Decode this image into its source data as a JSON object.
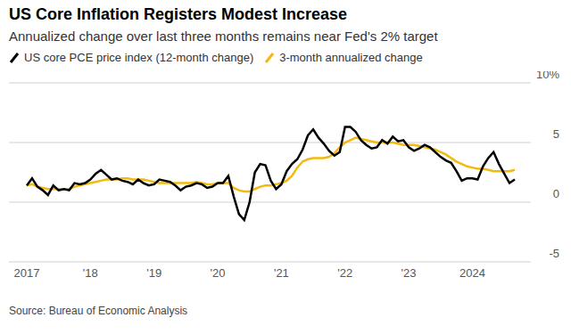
{
  "chart_data": {
    "type": "line",
    "title": "US Core Inflation Registers Modest Increase",
    "subtitle": "Annualized change over last three months remains near Fed's 2% target",
    "source": "Source: Bureau of Economic Analysis",
    "categories": [
      "2017",
      null,
      null,
      null,
      null,
      null,
      null,
      null,
      null,
      null,
      null,
      null,
      "'18",
      null,
      null,
      null,
      null,
      null,
      null,
      null,
      null,
      null,
      null,
      null,
      "'19",
      null,
      null,
      null,
      null,
      null,
      null,
      null,
      null,
      null,
      null,
      null,
      "'20",
      null,
      null,
      null,
      null,
      null,
      null,
      null,
      null,
      null,
      null,
      null,
      "'21",
      null,
      null,
      null,
      null,
      null,
      null,
      null,
      null,
      null,
      null,
      null,
      "'22",
      null,
      null,
      null,
      null,
      null,
      null,
      null,
      null,
      null,
      null,
      null,
      "'23",
      null,
      null,
      null,
      null,
      null,
      null,
      null,
      null,
      null,
      null,
      null,
      "2024",
      null,
      null,
      null,
      null,
      null,
      null,
      null,
      null
    ],
    "series": [
      {
        "name": "US core PCE price index (12-month change)",
        "color": "#000000",
        "values": [
          1.4,
          2.0,
          1.3,
          1.0,
          0.6,
          1.4,
          1.0,
          1.1,
          1.0,
          1.6,
          1.5,
          1.6,
          1.9,
          2.4,
          2.7,
          2.3,
          1.9,
          2.0,
          1.8,
          1.7,
          1.5,
          1.9,
          1.6,
          1.4,
          1.5,
          1.9,
          1.8,
          1.7,
          1.4,
          1.0,
          1.3,
          1.4,
          1.6,
          1.5,
          1.2,
          1.3,
          1.6,
          1.6,
          2.2,
          0.5,
          -1.0,
          -1.5,
          0.0,
          2.5,
          3.2,
          3.1,
          1.8,
          1.1,
          1.5,
          2.6,
          3.2,
          3.6,
          4.4,
          5.6,
          6.1,
          5.4,
          4.9,
          4.3,
          3.9,
          4.2,
          6.3,
          6.3,
          5.9,
          5.2,
          4.8,
          4.5,
          4.6,
          5.2,
          4.9,
          5.5,
          5.1,
          5.2,
          4.6,
          4.3,
          4.5,
          4.8,
          4.6,
          4.2,
          3.8,
          3.5,
          3.3,
          2.6,
          1.8,
          2.0,
          2.0,
          1.9,
          3.0,
          3.7,
          4.2,
          3.2,
          2.4,
          1.6,
          1.9
        ]
      },
      {
        "name": "3-month annualized change",
        "color": "#f4b90f",
        "values": [
          1.4,
          1.5,
          1.3,
          1.2,
          1.1,
          1.1,
          1.1,
          1.1,
          1.1,
          1.3,
          1.4,
          1.5,
          1.6,
          1.7,
          1.8,
          1.9,
          1.9,
          1.9,
          2.0,
          2.0,
          1.9,
          1.9,
          1.9,
          1.8,
          1.7,
          1.6,
          1.6,
          1.6,
          1.6,
          1.6,
          1.6,
          1.6,
          1.7,
          1.6,
          1.5,
          1.5,
          1.6,
          1.6,
          1.6,
          1.2,
          1.0,
          0.9,
          0.9,
          1.1,
          1.3,
          1.4,
          1.4,
          1.5,
          1.6,
          1.8,
          2.2,
          2.9,
          3.4,
          3.6,
          3.7,
          3.7,
          3.7,
          3.8,
          4.1,
          4.6,
          5.0,
          5.2,
          5.4,
          5.3,
          5.2,
          5.1,
          5.0,
          5.0,
          5.0,
          5.0,
          4.9,
          4.8,
          4.8,
          4.8,
          4.7,
          4.6,
          4.5,
          4.4,
          4.2,
          4.0,
          3.7,
          3.4,
          3.2,
          3.0,
          2.9,
          2.8,
          2.8,
          2.7,
          2.6,
          2.6,
          2.6,
          2.6,
          2.7
        ]
      }
    ],
    "ylim": [
      -5,
      10
    ],
    "yticks": [
      -5,
      0,
      5,
      {
        "value": 10,
        "label": "10%"
      }
    ],
    "grid": true,
    "legend": "top"
  }
}
